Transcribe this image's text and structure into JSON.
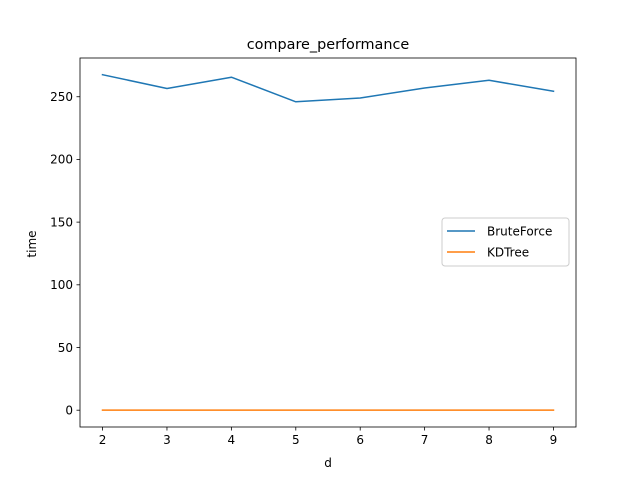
{
  "chart_data": {
    "type": "line",
    "title": "compare_performance",
    "xlabel": "d",
    "ylabel": "time",
    "x": [
      2,
      3,
      4,
      5,
      6,
      7,
      8,
      9
    ],
    "xlim": [
      1.65,
      9.35
    ],
    "ylim": [
      -13.4,
      280.9
    ],
    "xticks": [
      2,
      3,
      4,
      5,
      6,
      7,
      8,
      9
    ],
    "yticks": [
      0,
      50,
      100,
      150,
      200,
      250
    ],
    "grid": false,
    "legend_position": "center-right",
    "series": [
      {
        "name": "BruteForce",
        "color": "#1f77b4",
        "values": [
          267.6,
          256.6,
          265.6,
          246.0,
          249.0,
          257.0,
          263.1,
          254.4
        ]
      },
      {
        "name": "KDTree",
        "color": "#ff7f0e",
        "values": [
          0.1,
          0.1,
          0.1,
          0.1,
          0.1,
          0.1,
          0.1,
          0.1
        ]
      }
    ]
  }
}
